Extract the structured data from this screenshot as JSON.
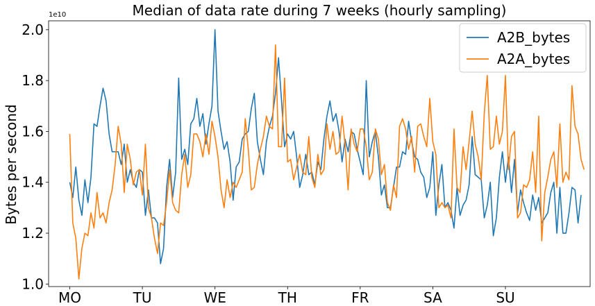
{
  "chart_data": {
    "type": "line",
    "title": "Median of data rate during 7 weeks (hourly sampling)",
    "ylabel": "Bytes per second",
    "xlabel": "",
    "y_offset_label": "1e10",
    "xlim": [
      -7,
      172
    ],
    "ylim": [
      0.99,
      2.035
    ],
    "x_tick_values": [
      0,
      24,
      48,
      72,
      96,
      120,
      144
    ],
    "x_tick_labels": [
      "MO",
      "TU",
      "WE",
      "TH",
      "FR",
      "SA",
      "SU"
    ],
    "y_tick_values": [
      1.0,
      1.2,
      1.4,
      1.6,
      1.8,
      2.0
    ],
    "y_tick_labels": [
      "1.0",
      "1.2",
      "1.4",
      "1.6",
      "1.8",
      "2.0"
    ],
    "legend_position": "top-right",
    "grid": false,
    "series": [
      {
        "name": "A2B_bytes",
        "color": "#1f77b4",
        "values": [
          1.4,
          1.34,
          1.46,
          1.33,
          1.27,
          1.41,
          1.32,
          1.42,
          1.63,
          1.62,
          1.7,
          1.77,
          1.72,
          1.59,
          1.52,
          1.52,
          1.52,
          1.47,
          1.55,
          1.4,
          1.45,
          1.4,
          1.38,
          1.45,
          1.44,
          1.27,
          1.37,
          1.26,
          1.26,
          1.24,
          1.08,
          1.14,
          1.38,
          1.49,
          1.34,
          1.44,
          1.81,
          1.49,
          1.53,
          1.47,
          1.63,
          1.65,
          1.73,
          1.62,
          1.67,
          1.55,
          1.63,
          1.7,
          2.0,
          1.68,
          1.6,
          1.53,
          1.56,
          1.48,
          1.33,
          1.46,
          1.48,
          1.57,
          1.59,
          1.6,
          1.69,
          1.75,
          1.56,
          1.49,
          1.43,
          1.56,
          1.62,
          1.66,
          1.75,
          1.89,
          1.72,
          1.54,
          1.59,
          1.57,
          1.6,
          1.5,
          1.38,
          1.43,
          1.51,
          1.43,
          1.44,
          1.39,
          1.48,
          1.45,
          1.57,
          1.66,
          1.72,
          1.64,
          1.67,
          1.6,
          1.48,
          1.57,
          1.52,
          1.6,
          1.59,
          1.53,
          1.48,
          1.43,
          1.8,
          1.5,
          1.56,
          1.6,
          1.5,
          1.35,
          1.39,
          1.3,
          1.3,
          1.38,
          1.46,
          1.46,
          1.52,
          1.51,
          1.64,
          1.56,
          1.5,
          1.49,
          1.44,
          1.42,
          1.34,
          1.38,
          1.52,
          1.27,
          1.39,
          1.47,
          1.3,
          1.32,
          1.29,
          1.22,
          1.38,
          1.27,
          1.31,
          1.33,
          1.39,
          1.58,
          1.43,
          1.42,
          1.41,
          1.26,
          1.31,
          1.4,
          1.19,
          1.26,
          1.42,
          1.52,
          1.4,
          1.5,
          1.36,
          1.49,
          1.28,
          1.37,
          1.32,
          1.28,
          1.25,
          1.35,
          1.29,
          1.34,
          1.24,
          1.26,
          1.28,
          1.36,
          1.4,
          1.2,
          1.38,
          1.2,
          1.2,
          1.28,
          1.38,
          1.37,
          1.24,
          1.35
        ]
      },
      {
        "name": "A2A_bytes",
        "color": "#ff7f0e",
        "values": [
          1.59,
          1.24,
          1.18,
          1.02,
          1.14,
          1.2,
          1.19,
          1.28,
          1.22,
          1.36,
          1.26,
          1.28,
          1.24,
          1.32,
          1.37,
          1.47,
          1.62,
          1.55,
          1.36,
          1.55,
          1.49,
          1.39,
          1.44,
          1.45,
          1.35,
          1.55,
          1.3,
          1.26,
          1.18,
          1.12,
          1.24,
          1.23,
          1.32,
          1.45,
          1.32,
          1.29,
          1.28,
          1.43,
          1.51,
          1.38,
          1.43,
          1.59,
          1.59,
          1.56,
          1.5,
          1.59,
          1.51,
          1.64,
          1.58,
          1.5,
          1.37,
          1.3,
          1.41,
          1.34,
          1.4,
          1.38,
          1.41,
          1.44,
          1.65,
          1.53,
          1.37,
          1.38,
          1.47,
          1.53,
          1.58,
          1.66,
          1.62,
          1.61,
          1.94,
          1.54,
          1.54,
          1.81,
          1.48,
          1.49,
          1.41,
          1.46,
          1.51,
          1.44,
          1.43,
          1.58,
          1.42,
          1.38,
          1.51,
          1.43,
          1.45,
          1.63,
          1.53,
          1.6,
          1.51,
          1.52,
          1.66,
          1.55,
          1.37,
          1.61,
          1.55,
          1.52,
          1.61,
          1.61,
          1.54,
          1.41,
          1.44,
          1.61,
          1.57,
          1.43,
          1.47,
          1.32,
          1.29,
          1.39,
          1.34,
          1.62,
          1.65,
          1.61,
          1.53,
          1.58,
          1.44,
          1.62,
          1.63,
          1.58,
          1.54,
          1.73,
          1.56,
          1.51,
          1.3,
          1.32,
          1.3,
          1.31,
          1.26,
          1.61,
          1.38,
          1.36,
          1.54,
          1.45,
          1.56,
          1.68,
          1.55,
          1.5,
          1.41,
          1.67,
          1.82,
          1.53,
          1.54,
          1.66,
          1.55,
          1.6,
          1.82,
          1.45,
          1.58,
          1.6,
          1.26,
          1.28,
          1.39,
          1.38,
          1.41,
          1.52,
          1.36,
          1.66,
          1.17,
          1.36,
          1.42,
          1.49,
          1.52,
          1.38,
          1.63,
          1.4,
          1.44,
          1.41,
          1.78,
          1.62,
          1.59,
          1.49,
          1.45
        ]
      }
    ]
  }
}
